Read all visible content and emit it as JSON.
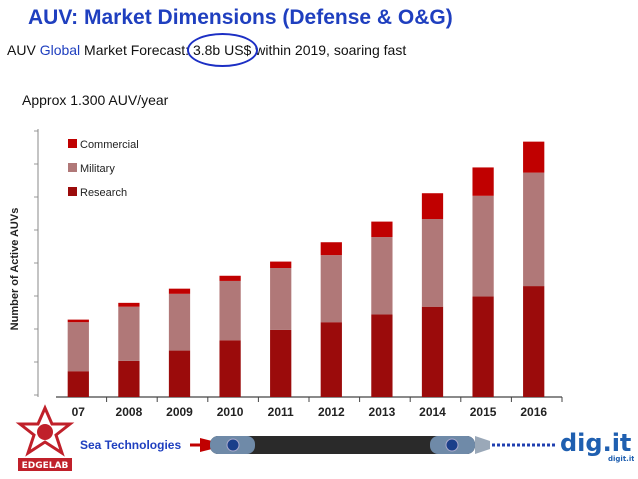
{
  "header": {
    "title": "AUV: Market Dimensions (Defense & O&G)",
    "subtitle_prefix": "AUV ",
    "subtitle_global": "Global",
    "subtitle_mid": " Market Forecast: ",
    "subtitle_value": "3.8b US$",
    "subtitle_suffix": " within 2019, soaring fast",
    "approx": "Approx 1.300 AUV/year"
  },
  "footer": {
    "label": "Sea Technologies",
    "left_logo_text": "EDGELAB",
    "right_logo_text": "dig.it",
    "right_logo_small": "digit.it"
  },
  "colors": {
    "title": "#1f3fbf",
    "commercial": "#c00000",
    "military": "#b07878",
    "research": "#9b0b0b"
  },
  "chart_data": {
    "type": "bar",
    "stacked": true,
    "title": "",
    "xlabel": "",
    "ylabel": "Number of Active AUVs",
    "categories": [
      "07",
      "2008",
      "2009",
      "2010",
      "2011",
      "2012",
      "2013",
      "2014",
      "2015",
      "2016"
    ],
    "series": [
      {
        "name": "Research",
        "color": "#9b0b0b",
        "values": [
          10,
          14,
          18,
          22,
          26,
          29,
          32,
          35,
          39,
          43
        ]
      },
      {
        "name": "Military",
        "color": "#b07878",
        "values": [
          19,
          21,
          22,
          23,
          24,
          26,
          30,
          34,
          39,
          44
        ]
      },
      {
        "name": "Commercial",
        "color": "#c00000",
        "values": [
          1,
          1.5,
          2,
          2,
          2.5,
          5,
          6,
          10,
          11,
          12
        ]
      }
    ],
    "legend": [
      "Commercial",
      "Military",
      "Research"
    ],
    "legend_position": "top-left",
    "ylim": [
      0,
      107
    ],
    "grid": false
  }
}
